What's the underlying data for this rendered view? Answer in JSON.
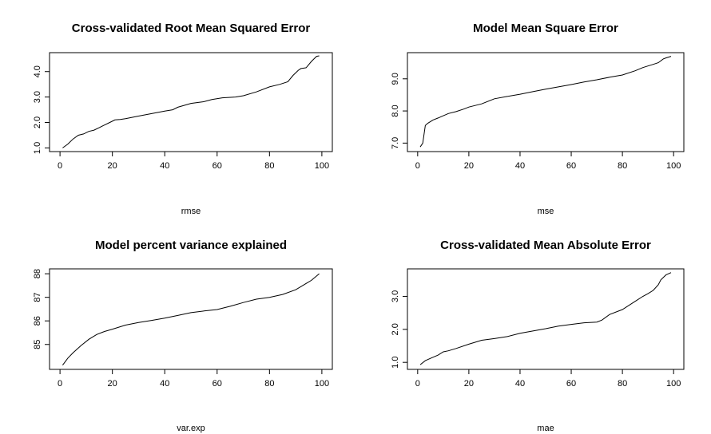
{
  "chart_data": [
    {
      "type": "line",
      "title": "Cross-validated Root Mean Squared Error",
      "xlabel": "rmse",
      "ylabel": "",
      "xlim": [
        0,
        100
      ],
      "ylim": [
        1.0,
        4.6
      ],
      "xticks": [
        0,
        20,
        40,
        60,
        80,
        100
      ],
      "yticks": [
        1.0,
        2.0,
        3.0,
        4.0
      ],
      "xtick_labels": [
        "0",
        "20",
        "40",
        "60",
        "80",
        "100"
      ],
      "ytick_labels": [
        "1.0",
        "2.0",
        "3.0",
        "4.0"
      ],
      "grid": false,
      "series": [
        {
          "x": [
            1,
            3,
            5,
            7,
            9,
            11,
            13,
            15,
            17,
            19,
            21,
            23,
            25,
            30,
            35,
            40,
            43,
            45,
            50,
            55,
            58,
            62,
            67,
            70,
            75,
            80,
            84,
            87,
            89,
            91,
            92,
            94,
            96,
            98,
            99
          ],
          "values": [
            1.0,
            1.15,
            1.35,
            1.5,
            1.55,
            1.65,
            1.7,
            1.8,
            1.9,
            2.0,
            2.1,
            2.12,
            2.15,
            2.25,
            2.35,
            2.45,
            2.5,
            2.6,
            2.75,
            2.82,
            2.9,
            2.97,
            3.0,
            3.05,
            3.2,
            3.4,
            3.5,
            3.6,
            3.85,
            4.05,
            4.12,
            4.15,
            4.4,
            4.6,
            4.62
          ]
        }
      ]
    },
    {
      "type": "line",
      "title": "Model Mean Square Error",
      "xlabel": "mse",
      "ylabel": "",
      "xlim": [
        0,
        100
      ],
      "ylim": [
        6.85,
        9.7
      ],
      "xticks": [
        0,
        20,
        40,
        60,
        80,
        100
      ],
      "yticks": [
        7.0,
        8.0,
        9.0
      ],
      "xtick_labels": [
        "0",
        "20",
        "40",
        "60",
        "80",
        "100"
      ],
      "ytick_labels": [
        "7.0",
        "8.0",
        "9.0"
      ],
      "grid": false,
      "series": [
        {
          "x": [
            1,
            2,
            3,
            4,
            6,
            8,
            10,
            12,
            15,
            18,
            20,
            25,
            30,
            35,
            40,
            45,
            50,
            55,
            60,
            65,
            70,
            75,
            80,
            85,
            88,
            90,
            92,
            94,
            96,
            97,
            99
          ],
          "values": [
            6.88,
            7.0,
            7.55,
            7.62,
            7.72,
            7.78,
            7.85,
            7.92,
            7.98,
            8.06,
            8.12,
            8.22,
            8.38,
            8.45,
            8.52,
            8.6,
            8.68,
            8.75,
            8.82,
            8.9,
            8.97,
            9.05,
            9.12,
            9.25,
            9.35,
            9.4,
            9.45,
            9.5,
            9.62,
            9.65,
            9.7
          ]
        }
      ]
    },
    {
      "type": "line",
      "title": "Model percent variance explained",
      "xlabel": "var.exp",
      "ylabel": "",
      "xlim": [
        0,
        100
      ],
      "ylim": [
        84.1,
        88.05
      ],
      "xticks": [
        0,
        20,
        40,
        60,
        80,
        100
      ],
      "yticks": [
        85,
        86,
        87,
        88
      ],
      "xtick_labels": [
        "0",
        "20",
        "40",
        "60",
        "80",
        "100"
      ],
      "ytick_labels": [
        "85",
        "86",
        "87",
        "88"
      ],
      "grid": false,
      "series": [
        {
          "x": [
            1,
            3,
            5,
            8,
            11,
            14,
            17,
            20,
            25,
            30,
            35,
            40,
            45,
            50,
            55,
            60,
            65,
            70,
            75,
            80,
            85,
            90,
            93,
            96,
            99
          ],
          "values": [
            84.12,
            84.42,
            84.65,
            84.95,
            85.22,
            85.42,
            85.55,
            85.65,
            85.82,
            85.93,
            86.02,
            86.12,
            86.23,
            86.35,
            86.42,
            86.48,
            86.62,
            86.78,
            86.92,
            87.0,
            87.12,
            87.32,
            87.52,
            87.72,
            88.0
          ]
        }
      ]
    },
    {
      "type": "line",
      "title": "Cross-validated Mean Absolute Error",
      "xlabel": "mae",
      "ylabel": "",
      "xlim": [
        0,
        100
      ],
      "ylim": [
        0.9,
        3.72
      ],
      "xticks": [
        0,
        20,
        40,
        60,
        80,
        100
      ],
      "yticks": [
        1.0,
        2.0,
        3.0
      ],
      "xtick_labels": [
        "0",
        "20",
        "40",
        "60",
        "80",
        "100"
      ],
      "ytick_labels": [
        "1.0",
        "2.0",
        "3.0"
      ],
      "grid": false,
      "series": [
        {
          "x": [
            1,
            3,
            5,
            8,
            10,
            12,
            15,
            20,
            25,
            30,
            35,
            40,
            45,
            50,
            55,
            60,
            65,
            70,
            72,
            75,
            80,
            85,
            88,
            90,
            92,
            94,
            95,
            97,
            99
          ],
          "values": [
            0.93,
            1.05,
            1.12,
            1.22,
            1.32,
            1.35,
            1.42,
            1.55,
            1.67,
            1.72,
            1.78,
            1.88,
            1.95,
            2.02,
            2.1,
            2.15,
            2.2,
            2.22,
            2.28,
            2.45,
            2.6,
            2.85,
            3.0,
            3.08,
            3.18,
            3.35,
            3.5,
            3.65,
            3.72
          ]
        }
      ]
    }
  ]
}
